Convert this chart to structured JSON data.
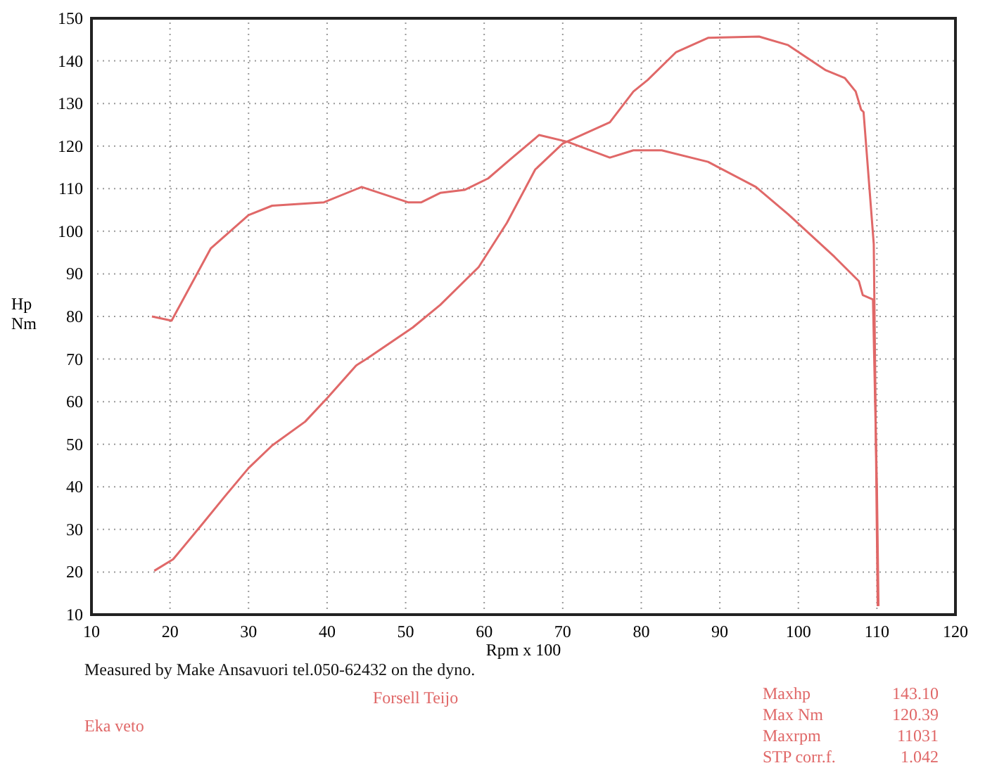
{
  "chart_data": {
    "type": "line",
    "xlabel": "Rpm x 100",
    "ylabel": "Hp\nNm",
    "xlim": [
      10,
      120
    ],
    "ylim": [
      10,
      150
    ],
    "xticks": [
      10,
      20,
      30,
      40,
      50,
      60,
      70,
      80,
      90,
      100,
      110,
      120
    ],
    "yticks": [
      10,
      20,
      30,
      40,
      50,
      60,
      70,
      80,
      90,
      100,
      110,
      120,
      130,
      140,
      150
    ],
    "grid": true,
    "marker": "none",
    "line_style": "solid",
    "series": [
      {
        "color": "#e06868",
        "x": [
          17.7,
          20.2,
          25.2,
          30,
          33,
          39.6,
          44.4,
          50.3,
          52,
          54.4,
          57.5,
          60.5,
          63.4,
          67,
          70.6,
          76,
          79,
          82.6,
          88.5,
          94.6,
          98.7,
          104.6,
          107.7,
          108.2,
          109.5,
          110,
          110.2
        ],
        "values": [
          80,
          79,
          96,
          103.8,
          106,
          106.8,
          110.4,
          106.8,
          106.8,
          109,
          109.7,
          112.4,
          117,
          122.6,
          121,
          117.3,
          119,
          119,
          116.3,
          110.4,
          104,
          94,
          88.3,
          85,
          84,
          40,
          12
        ]
      },
      {
        "color": "#e06868",
        "x": [
          18,
          20.4,
          24,
          27,
          30,
          33,
          37.2,
          40.1,
          43.7,
          45,
          50.9,
          54.4,
          59.3,
          62.9,
          66.5,
          70,
          76,
          79,
          80.8,
          84.4,
          88.5,
          95,
          98.7,
          103.5,
          105.9,
          107.3,
          108,
          108.3,
          109.6,
          110.1
        ],
        "values": [
          20.3,
          23,
          31,
          37.8,
          44.4,
          49.7,
          55.3,
          61,
          68.5,
          70,
          77.4,
          82.7,
          91.6,
          102,
          114.5,
          120.6,
          125.6,
          132.8,
          135.5,
          142,
          145.4,
          145.7,
          143.7,
          137.8,
          136,
          132.8,
          128.5,
          128,
          97,
          12
        ]
      }
    ],
    "annotations": [
      "Measured by Make Ansavuori tel.050-62432 on the dyno.",
      "Forsell Teijo",
      "Eka veto",
      "Maxhp",
      "143.10",
      "Max Nm",
      "120.39",
      "Maxrpm",
      "11031",
      "STP corr.f.",
      "1.042"
    ]
  }
}
